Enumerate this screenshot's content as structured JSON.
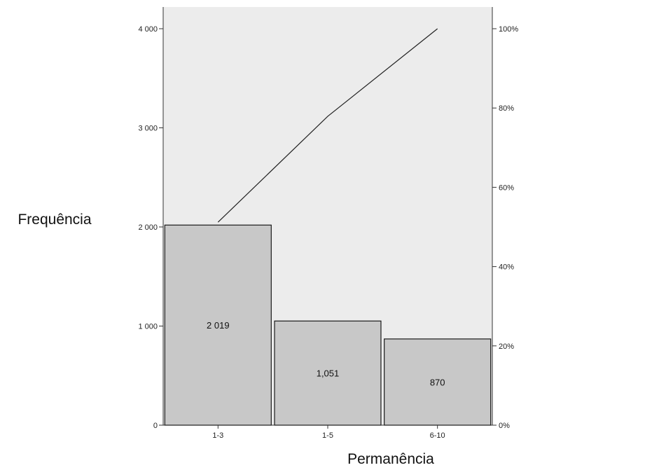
{
  "chart_data": {
    "type": "bar",
    "title": "",
    "xlabel": "Permanência",
    "ylabel": "Frequência",
    "categories": [
      "1-3",
      "1-5",
      "6-10"
    ],
    "values": [
      2019,
      1051,
      870
    ],
    "value_labels": [
      "2 019",
      "1,051",
      "870"
    ],
    "ylim": [
      0,
      4000
    ],
    "yticks": [
      0,
      1000,
      2000,
      3000,
      4000
    ],
    "ytick_labels": [
      "0",
      "1 000",
      "2 000",
      "3 000",
      "4 000"
    ],
    "cumulative_line": {
      "type": "line",
      "axis": "right",
      "values_percent": [
        51.2,
        77.9,
        100
      ],
      "ylim": [
        0,
        100
      ],
      "ticks": [
        0,
        20,
        40,
        60,
        80,
        100
      ],
      "tick_labels": [
        "0%",
        "20%",
        "40%",
        "60%",
        "80%",
        "100%"
      ]
    },
    "grid": false,
    "legend": "none",
    "colors": {
      "plot_background": "#ececec",
      "bar_fill": "#c8c8c8",
      "bar_stroke": "#1a1a1a",
      "line": "#222222"
    }
  }
}
